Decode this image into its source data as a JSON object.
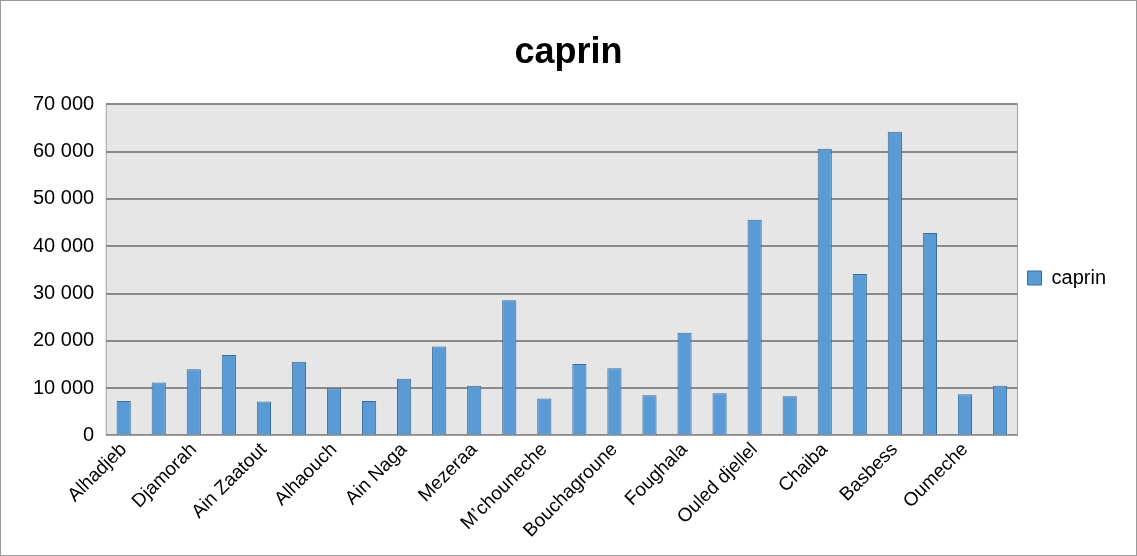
{
  "chart_data": {
    "type": "bar",
    "title": "caprin",
    "categories": [
      "Alhadjeb",
      null,
      "Djamorah",
      null,
      "Ain Zaatout",
      null,
      "Alhaouch",
      null,
      "Ain Naga",
      null,
      "Mezeraa",
      null,
      "M’chouneche",
      null,
      "Bouchagroune",
      null,
      "Foughala",
      null,
      "Ouled djellel",
      null,
      "Chaiba",
      null,
      "Basbess",
      null,
      "Oumeche",
      null
    ],
    "series": [
      {
        "name": "caprin",
        "color": "#5b9bd5",
        "values": [
          7300,
          11200,
          14000,
          17000,
          7200,
          15600,
          10000,
          7300,
          12000,
          18800,
          10500,
          28600,
          7800,
          15100,
          14200,
          8500,
          21700,
          8900,
          45600,
          8300,
          60600,
          34100,
          64200,
          42800,
          8700,
          10500
        ]
      }
    ],
    "ylim": [
      0,
      70000
    ],
    "yticks": [
      {
        "value": 0,
        "label": "0"
      },
      {
        "value": 10000,
        "label": "10 000"
      },
      {
        "value": 20000,
        "label": "20 000"
      },
      {
        "value": 30000,
        "label": "30 000"
      },
      {
        "value": 40000,
        "label": "40 000"
      },
      {
        "value": 50000,
        "label": "50 000"
      },
      {
        "value": 60000,
        "label": "60 000"
      },
      {
        "value": 70000,
        "label": "70 000"
      }
    ],
    "grid": "y",
    "legend": "right"
  }
}
